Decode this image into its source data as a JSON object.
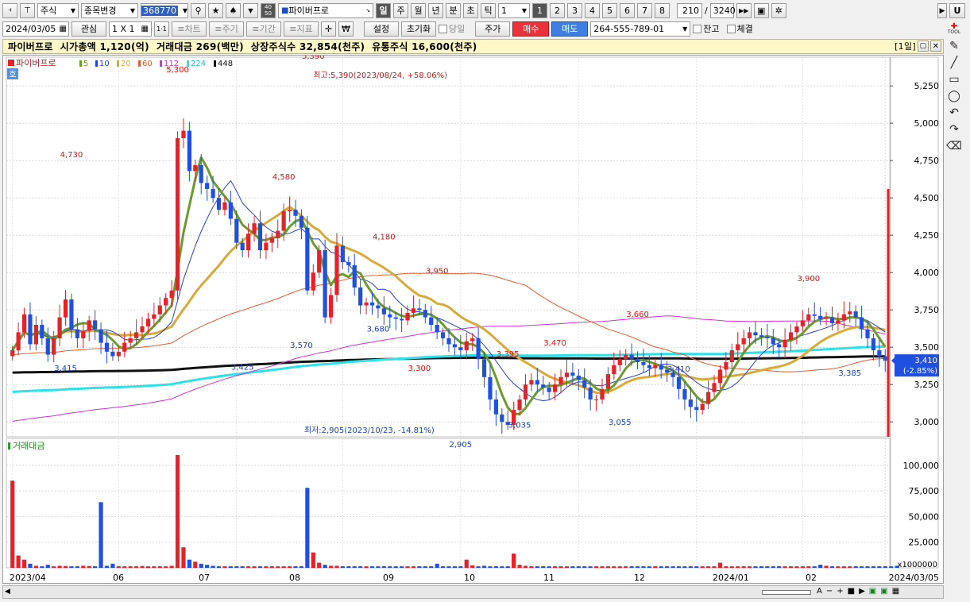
{
  "toolbar": {
    "market_select": "주식",
    "change_select": "종목변경",
    "code_input": "368770",
    "stock_name": "파이버프로",
    "period_tabs": [
      "일",
      "주",
      "월",
      "년",
      "분",
      "초",
      "틱"
    ],
    "period_active": "일",
    "period_value": "1",
    "num_buttons": [
      "1",
      "2",
      "3",
      "4",
      "5",
      "6",
      "7",
      "8"
    ],
    "num_active": "1",
    "count_value": "210",
    "count_total": "3240",
    "u_button": "U",
    "count_small": [
      "40",
      "50"
    ]
  },
  "toolbar2": {
    "date": "2024/03/05",
    "watch_label": "관심",
    "layout_label": "1 X 1",
    "one_one": "1·1",
    "chart_btn": "≡차트",
    "cycle_btn": "≡주기",
    "period_btn": "≡기간",
    "indicator_btn": "≡지표",
    "won_sign": "₩",
    "setting_btn": "설정",
    "reset_btn": "초기화",
    "sameday_label": "당일",
    "price_btn": "주가",
    "buy_btn": "매수",
    "sell_btn": "매도",
    "account": "264-555-789-01",
    "balance_label": "잔고",
    "execution_label": "체결"
  },
  "info": {
    "text": "파이버프로  시가총액 1,120(억)  거래대금 269(백만)  상장주식수 32,854(천주)  유통주식 16,600(천주)",
    "window_tag": "[1일]"
  },
  "legend": {
    "name": "파이버프로",
    "items": [
      {
        "label": "5",
        "color": "#6b9b2f"
      },
      {
        "label": "10",
        "color": "#2a3fd0"
      },
      {
        "label": "20",
        "color": "#d8aa38"
      },
      {
        "label": "60",
        "color": "#e85a2c"
      },
      {
        "label": "112",
        "color": "#d22fd0"
      },
      {
        "label": "224",
        "color": "#2ee0e8"
      },
      {
        "label": "448",
        "color": "#111111"
      }
    ],
    "corner_tag": "호"
  },
  "volume_legend": "거래대금",
  "annotations": {
    "high": "최고:5,390(2023/08/24, +58.06%)",
    "low": "최저:2,905(2023/10/23, -14.81%)"
  },
  "current_price": {
    "value": "3,410",
    "change": "(-2.85%)"
  },
  "volume_unit": "x1000000",
  "chart_data": {
    "type": "candlestick",
    "price_axis": {
      "ticks": [
        "5,250",
        "5,000",
        "4,750",
        "4,500",
        "4,250",
        "4,000",
        "3,750",
        "3,500",
        "3,250",
        "3,000"
      ],
      "values": [
        5250,
        5000,
        4750,
        4500,
        4250,
        4000,
        3750,
        3500,
        3250,
        3000
      ],
      "range": [
        2900,
        5400
      ]
    },
    "volume_axis": {
      "ticks": [
        "100,000",
        "75,000",
        "50,000",
        "25,000"
      ],
      "values": [
        100000,
        75000,
        50000,
        25000
      ]
    },
    "x_labels": [
      "2023/04",
      "06",
      "07",
      "08",
      "09",
      "10",
      "11",
      "12",
      "2024/01",
      "02",
      "2024/03/05"
    ],
    "price_labels": [
      {
        "text": "4,730",
        "color": "#e01010",
        "v": 4730
      },
      {
        "text": "3,415",
        "color": "#1a3fc0",
        "v": 3415
      },
      {
        "text": "5,300",
        "color": "#e01010",
        "v": 5300
      },
      {
        "text": "3,425",
        "color": "#1a3fc0",
        "v": 3425
      },
      {
        "text": "4,580",
        "color": "#e01010",
        "v": 4580
      },
      {
        "text": "3,570",
        "color": "#1a3fc0",
        "v": 3570
      },
      {
        "text": "5,390",
        "color": "#e01010",
        "v": 5390
      },
      {
        "text": "3,680",
        "color": "#1a3fc0",
        "v": 3680
      },
      {
        "text": "4,180",
        "color": "#e01010",
        "v": 4180
      },
      {
        "text": "3,950",
        "color": "#e01010",
        "v": 3950
      },
      {
        "text": "3,300",
        "color": "#e01010",
        "v": 3300
      },
      {
        "text": "2,905",
        "color": "#1a3fc0",
        "v": 2905
      },
      {
        "text": "3,395",
        "color": "#e01010",
        "v": 3395
      },
      {
        "text": "3,035",
        "color": "#1a3fc0",
        "v": 3035
      },
      {
        "text": "3,470",
        "color": "#e01010",
        "v": 3470
      },
      {
        "text": "3,055",
        "color": "#1a3fc0",
        "v": 3055
      },
      {
        "text": "3,660",
        "color": "#e01010",
        "v": 3660
      },
      {
        "text": "3,410",
        "color": "#1a3fc0",
        "v": 3410
      },
      {
        "text": "3,900",
        "color": "#e01010",
        "v": 3900
      },
      {
        "text": "3,385",
        "color": "#1a3fc0",
        "v": 3385
      }
    ],
    "close_series": [
      3480,
      3600,
      3720,
      3520,
      3650,
      3560,
      3450,
      3560,
      3700,
      3820,
      3620,
      3560,
      3610,
      3680,
      3620,
      3530,
      3470,
      3440,
      3470,
      3530,
      3560,
      3600,
      3640,
      3690,
      3720,
      3780,
      3830,
      3880,
      4900,
      4950,
      4680,
      4720,
      4600,
      4560,
      4500,
      4420,
      4470,
      4360,
      4200,
      4150,
      4260,
      4330,
      4150,
      4200,
      4230,
      4280,
      4410,
      4420,
      4380,
      4300,
      3880,
      4000,
      4150,
      3700,
      3850,
      4180,
      4070,
      4050,
      3900,
      3780,
      3800,
      3780,
      3760,
      3720,
      3700,
      3690,
      3680,
      3730,
      3760,
      3750,
      3700,
      3650,
      3600,
      3560,
      3520,
      3500,
      3480,
      3540,
      3560,
      3420,
      3300,
      3150,
      3050,
      3000,
      2980,
      3080,
      3150,
      3250,
      3280,
      3250,
      3230,
      3200,
      3250,
      3300,
      3330,
      3310,
      3280,
      3230,
      3150,
      3150,
      3220,
      3320,
      3380,
      3420,
      3450,
      3420,
      3400,
      3380,
      3360,
      3380,
      3350,
      3330,
      3300,
      3220,
      3150,
      3100,
      3080,
      3120,
      3200,
      3260,
      3350,
      3400,
      3480,
      3520,
      3560,
      3600,
      3580,
      3570,
      3560,
      3520,
      3500,
      3550,
      3600,
      3640,
      3680,
      3720,
      3710,
      3690,
      3700,
      3660,
      3680,
      3720,
      3740,
      3700,
      3620,
      3560,
      3480,
      3440,
      3410
    ],
    "volume_series": [
      85000,
      12000,
      8000,
      4000,
      2000,
      1500,
      3000,
      1500,
      2000,
      1800,
      1500,
      1500,
      2000,
      1800,
      1500,
      64000,
      2000,
      4000,
      1500,
      1500,
      1500,
      1500,
      1800,
      1500,
      1500,
      1500,
      1500,
      2000,
      110000,
      20000,
      8000,
      6000,
      4000,
      3000,
      2000,
      1500,
      1500,
      1500,
      1500,
      1500,
      1500,
      1500,
      1500,
      1500,
      1500,
      1500,
      1500,
      1500,
      1500,
      1500,
      78000,
      15000,
      5000,
      3000,
      2000,
      2000,
      1500,
      1500,
      1500,
      1500,
      1500,
      1500,
      1500,
      1500,
      1500,
      1500,
      1500,
      1500,
      1500,
      1500,
      1500,
      1500,
      4000,
      1500,
      1500,
      1500,
      1500,
      8000,
      2500,
      1500,
      2000,
      1500,
      1500,
      1500,
      1500,
      14000,
      3000,
      2000,
      1500,
      1500,
      1500,
      1500,
      1500,
      1500,
      1500,
      1500,
      1500,
      1500,
      1500,
      1500,
      1500,
      1500,
      1500,
      1500,
      1500,
      1500,
      1500,
      1500,
      1500,
      1500,
      1500,
      1500,
      1500,
      1500,
      1500,
      1500,
      1500,
      1500,
      1500,
      1500,
      5000,
      1500,
      1500,
      1500,
      1500,
      1500,
      1500,
      1500,
      1500,
      1500,
      1500,
      1500,
      1500,
      1500,
      1500,
      1500,
      1500,
      3000,
      2000,
      1500,
      1500,
      1500,
      1500,
      1500,
      1500,
      1500,
      1500,
      1500,
      1500,
      1500,
      2000
    ]
  },
  "scroll": {
    "zoom_btns": [
      "A",
      "−",
      "+",
      "■",
      "▶"
    ]
  }
}
